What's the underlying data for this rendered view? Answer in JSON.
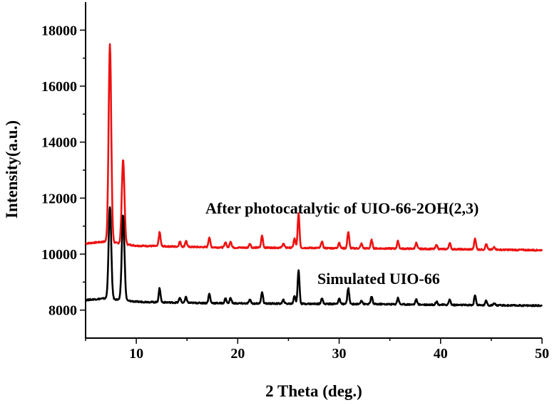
{
  "chart_data": {
    "type": "line",
    "xlabel": "2 Theta (deg.)",
    "ylabel": "Intensity(a.u.)",
    "xlim": [
      5,
      50
    ],
    "ylim": [
      7000,
      19000
    ],
    "x_ticks": [
      10,
      20,
      30,
      40,
      50
    ],
    "y_ticks": [
      8000,
      10000,
      12000,
      14000,
      16000,
      18000
    ],
    "grid": false,
    "annotations": [
      "After photocatalytic of UIO-66-2OH(2,3)",
      "Simulated UIO-66"
    ],
    "series": [
      {
        "name": "After photocatalytic of UIO-66-2OH(2,3)",
        "color": "#ee1111",
        "baseline": [
          [
            5,
            10380
          ],
          [
            7,
            10450
          ],
          [
            10,
            10300
          ],
          [
            15,
            10260
          ],
          [
            20,
            10230
          ],
          [
            25,
            10230
          ],
          [
            30,
            10210
          ],
          [
            35,
            10200
          ],
          [
            40,
            10180
          ],
          [
            45,
            10160
          ],
          [
            50,
            10140
          ]
        ],
        "peaks": [
          [
            7.4,
            17480
          ],
          [
            8.7,
            13380
          ],
          [
            12.3,
            10780
          ],
          [
            14.3,
            10450
          ],
          [
            14.9,
            10470
          ],
          [
            17.2,
            10600
          ],
          [
            18.8,
            10430
          ],
          [
            19.3,
            10460
          ],
          [
            21.2,
            10380
          ],
          [
            22.4,
            10660
          ],
          [
            24.5,
            10380
          ],
          [
            25.6,
            10550
          ],
          [
            26.0,
            11450
          ],
          [
            28.3,
            10450
          ],
          [
            30.0,
            10420
          ],
          [
            30.9,
            10800
          ],
          [
            32.2,
            10370
          ],
          [
            33.2,
            10500
          ],
          [
            35.8,
            10460
          ],
          [
            37.6,
            10400
          ],
          [
            39.6,
            10330
          ],
          [
            40.9,
            10400
          ],
          [
            43.4,
            10560
          ],
          [
            44.5,
            10360
          ],
          [
            45.3,
            10260
          ]
        ]
      },
      {
        "name": "Simulated UIO-66",
        "color": "#000000",
        "baseline": [
          [
            5,
            8360
          ],
          [
            7,
            8420
          ],
          [
            10,
            8300
          ],
          [
            15,
            8260
          ],
          [
            20,
            8240
          ],
          [
            25,
            8230
          ],
          [
            30,
            8220
          ],
          [
            35,
            8210
          ],
          [
            40,
            8190
          ],
          [
            45,
            8170
          ],
          [
            50,
            8160
          ]
        ],
        "peaks": [
          [
            7.4,
            11700
          ],
          [
            8.7,
            11400
          ],
          [
            12.3,
            8780
          ],
          [
            14.3,
            8440
          ],
          [
            14.9,
            8460
          ],
          [
            17.2,
            8580
          ],
          [
            18.8,
            8420
          ],
          [
            19.3,
            8440
          ],
          [
            21.2,
            8370
          ],
          [
            22.4,
            8650
          ],
          [
            24.5,
            8360
          ],
          [
            25.6,
            8520
          ],
          [
            26.0,
            9430
          ],
          [
            28.3,
            8430
          ],
          [
            30.0,
            8410
          ],
          [
            30.9,
            8780
          ],
          [
            32.2,
            8350
          ],
          [
            33.2,
            8480
          ],
          [
            35.8,
            8440
          ],
          [
            37.6,
            8380
          ],
          [
            39.6,
            8310
          ],
          [
            40.9,
            8380
          ],
          [
            43.4,
            8540
          ],
          [
            44.5,
            8340
          ],
          [
            45.3,
            8250
          ]
        ]
      }
    ]
  }
}
